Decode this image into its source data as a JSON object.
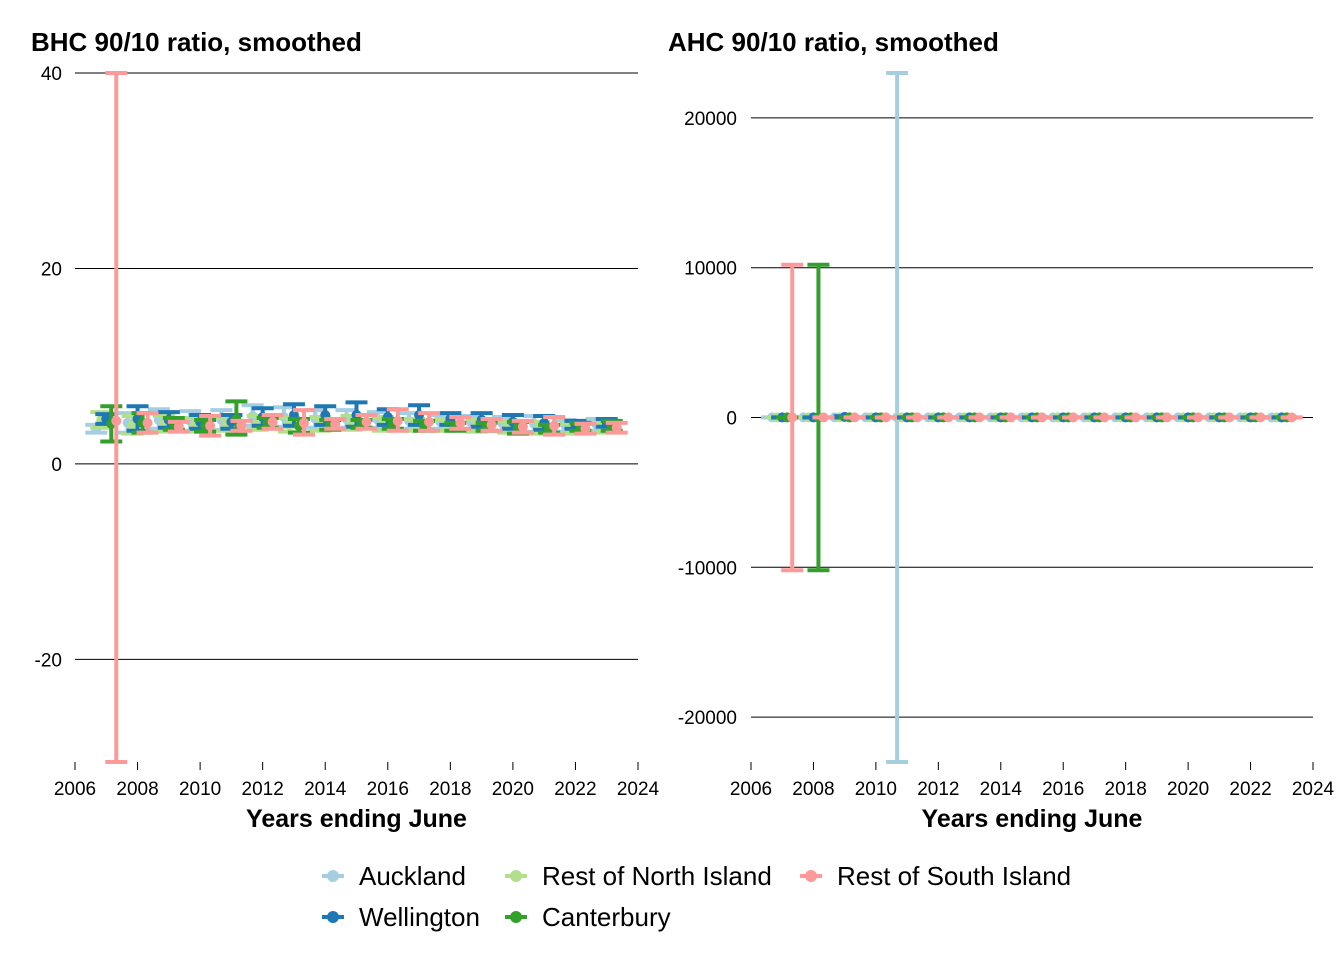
{
  "legend": [
    {
      "name": "Auckland",
      "color": "#A6CEE3"
    },
    {
      "name": "Rest of North Island",
      "color": "#B2DF8A"
    },
    {
      "name": "Rest of South Island",
      "color": "#FB9A99"
    },
    {
      "name": "Wellington",
      "color": "#1F78B4"
    },
    {
      "name": "Canterbury",
      "color": "#33A02C"
    }
  ],
  "chart_data": [
    {
      "type": "errorbar",
      "title": "BHC 90/10 ratio, smoothed",
      "xlabel": "Years ending June",
      "ylabel": "",
      "xlim": [
        2006,
        2024
      ],
      "ylim": [
        -30.5,
        40
      ],
      "xticks": [
        2006,
        2008,
        2010,
        2012,
        2014,
        2016,
        2018,
        2020,
        2022,
        2024
      ],
      "yticks": [
        -20,
        0,
        20,
        40
      ],
      "ytick_labels": [
        "-20",
        "0",
        "20",
        "40"
      ],
      "grid": "horizontal",
      "x": [
        2007,
        2008,
        2009,
        2010,
        2011,
        2012,
        2013,
        2014,
        2015,
        2016,
        2017,
        2018,
        2019,
        2020,
        2021,
        2022,
        2023
      ],
      "series": [
        {
          "name": "Auckland",
          "color": "#A6CEE3",
          "values": [
            3.6,
            4.2,
            4.5,
            4.4,
            4.5,
            4.9,
            4.8,
            4.6,
            4.6,
            4.5,
            4.4,
            4.3,
            4.2,
            4.1,
            4.1,
            3.9,
            4.0
          ],
          "lower": [
            3.2,
            3.2,
            3.6,
            3.4,
            3.5,
            3.9,
            3.8,
            3.7,
            3.7,
            3.7,
            3.6,
            3.6,
            3.5,
            3.4,
            3.3,
            3.3,
            3.4
          ],
          "upper": [
            4.0,
            5.2,
            5.6,
            5.4,
            5.5,
            6.0,
            5.8,
            5.5,
            5.5,
            5.3,
            5.2,
            5.0,
            4.9,
            4.8,
            4.9,
            4.5,
            4.6
          ]
        },
        {
          "name": "Rest of North Island",
          "color": "#B2DF8A",
          "values": [
            4.5,
            4.0,
            4.1,
            4.0,
            4.1,
            4.2,
            4.0,
            4.1,
            4.2,
            4.1,
            4.0,
            4.0,
            3.9,
            3.8,
            3.7,
            3.6,
            3.7
          ],
          "lower": [
            3.7,
            3.1,
            3.3,
            3.3,
            3.4,
            3.5,
            3.3,
            3.4,
            3.5,
            3.4,
            3.4,
            3.4,
            3.3,
            3.2,
            3.1,
            3.1,
            3.2
          ],
          "upper": [
            5.3,
            4.9,
            4.9,
            4.7,
            4.8,
            4.9,
            4.7,
            4.8,
            4.9,
            4.8,
            4.6,
            4.6,
            4.5,
            4.4,
            4.3,
            4.1,
            4.2
          ]
        },
        {
          "name": "Wellington",
          "color": "#1F78B4",
          "values": [
            4.6,
            4.6,
            4.5,
            4.3,
            4.3,
            4.8,
            5.0,
            5.0,
            5.0,
            4.8,
            5.0,
            4.6,
            4.5,
            4.3,
            4.2,
            4.0,
            4.2
          ],
          "lower": [
            4.1,
            3.4,
            3.7,
            3.6,
            3.6,
            3.9,
            3.9,
            4.0,
            3.8,
            4.0,
            4.0,
            4.0,
            3.8,
            3.6,
            3.5,
            3.6,
            3.8
          ],
          "upper": [
            5.1,
            5.9,
            5.3,
            5.0,
            5.0,
            5.7,
            6.1,
            5.9,
            6.3,
            5.6,
            6.0,
            5.2,
            5.2,
            5.0,
            4.9,
            4.4,
            4.6
          ]
        },
        {
          "name": "Canterbury",
          "color": "#33A02C",
          "values": [
            4.1,
            4.2,
            4.1,
            3.9,
            4.6,
            4.2,
            3.9,
            4.0,
            4.1,
            4.1,
            3.9,
            3.8,
            3.8,
            3.7,
            3.6,
            3.8,
            3.9
          ],
          "lower": [
            2.3,
            3.2,
            3.5,
            3.3,
            3.0,
            3.7,
            3.2,
            3.5,
            3.7,
            3.6,
            3.4,
            3.4,
            3.4,
            3.1,
            3.2,
            3.4,
            3.4
          ],
          "upper": [
            5.9,
            5.2,
            4.7,
            4.5,
            6.4,
            4.7,
            4.6,
            4.5,
            4.5,
            4.6,
            4.4,
            4.2,
            4.2,
            4.3,
            4.0,
            4.2,
            4.4
          ]
        },
        {
          "name": "Rest of South Island",
          "color": "#FB9A99",
          "values": [
            4.4,
            4.2,
            3.8,
            3.9,
            3.9,
            4.3,
            4.2,
            4.1,
            4.3,
            4.4,
            4.3,
            4.2,
            4.0,
            3.8,
            3.9,
            3.6,
            3.7
          ],
          "lower": [
            -30.5,
            3.2,
            3.3,
            2.9,
            3.4,
            3.6,
            3.0,
            3.6,
            3.6,
            3.4,
            3.4,
            3.6,
            3.4,
            3.2,
            3.0,
            3.1,
            3.2
          ],
          "upper": [
            40.0,
            5.2,
            4.3,
            4.9,
            4.4,
            5.0,
            5.5,
            4.6,
            5.0,
            5.6,
            5.2,
            4.8,
            4.6,
            4.4,
            4.8,
            4.1,
            4.2
          ]
        }
      ]
    },
    {
      "type": "errorbar",
      "title": "AHC 90/10 ratio, smoothed",
      "xlabel": "Years ending June",
      "ylabel": "",
      "xlim": [
        2006,
        2024
      ],
      "ylim": [
        -23000,
        23000
      ],
      "xticks": [
        2006,
        2008,
        2010,
        2012,
        2014,
        2016,
        2018,
        2020,
        2022,
        2024
      ],
      "yticks": [
        -20000,
        -10000,
        0,
        10000,
        20000
      ],
      "ytick_labels": [
        "-20000",
        "-10000",
        "0",
        "10000",
        "20000"
      ],
      "grid": "horizontal",
      "x": [
        2007,
        2008,
        2009,
        2010,
        2011,
        2012,
        2013,
        2014,
        2015,
        2016,
        2017,
        2018,
        2019,
        2020,
        2021,
        2022,
        2023
      ],
      "series": [
        {
          "name": "Auckland",
          "color": "#A6CEE3",
          "values": [
            6,
            6,
            6,
            6,
            6,
            6,
            6,
            6,
            6,
            6,
            6,
            6,
            6,
            6,
            6,
            6,
            6
          ],
          "lower": [
            2,
            2,
            2,
            2,
            -23000,
            2,
            2,
            2,
            2,
            2,
            2,
            2,
            2,
            2,
            2,
            2,
            2
          ],
          "upper": [
            10,
            10,
            10,
            10,
            23000,
            10,
            10,
            10,
            10,
            10,
            10,
            10,
            10,
            10,
            10,
            10,
            10
          ]
        },
        {
          "name": "Rest of North Island",
          "color": "#B2DF8A",
          "values": [
            6,
            6,
            6,
            6,
            6,
            6,
            6,
            6,
            6,
            6,
            6,
            6,
            6,
            6,
            6,
            6,
            6
          ],
          "lower": [
            2,
            2,
            2,
            2,
            2,
            2,
            2,
            2,
            2,
            2,
            2,
            2,
            2,
            2,
            2,
            2,
            2
          ],
          "upper": [
            10,
            10,
            10,
            10,
            10,
            10,
            10,
            10,
            10,
            10,
            10,
            10,
            10,
            10,
            10,
            10,
            10
          ]
        },
        {
          "name": "Wellington",
          "color": "#1F78B4",
          "values": [
            6,
            6,
            40,
            6,
            6,
            6,
            6,
            6,
            6,
            6,
            6,
            6,
            6,
            6,
            6,
            6,
            6
          ],
          "lower": [
            2,
            2,
            2,
            2,
            2,
            2,
            2,
            2,
            2,
            2,
            2,
            2,
            2,
            2,
            2,
            2,
            2
          ],
          "upper": [
            10,
            10,
            80,
            10,
            10,
            10,
            10,
            10,
            10,
            10,
            10,
            10,
            10,
            10,
            10,
            10,
            10
          ]
        },
        {
          "name": "Canterbury",
          "color": "#33A02C",
          "values": [
            6,
            6,
            6,
            6,
            6,
            6,
            6,
            6,
            6,
            6,
            6,
            6,
            6,
            6,
            6,
            6,
            6
          ],
          "lower": [
            2,
            -10200,
            2,
            2,
            2,
            2,
            2,
            2,
            2,
            2,
            2,
            2,
            2,
            2,
            2,
            2,
            2
          ],
          "upper": [
            10,
            10200,
            10,
            10,
            10,
            10,
            10,
            10,
            10,
            10,
            10,
            10,
            10,
            10,
            10,
            10,
            10
          ]
        },
        {
          "name": "Rest of South Island",
          "color": "#FB9A99",
          "values": [
            6,
            6,
            6,
            6,
            6,
            6,
            6,
            6,
            6,
            6,
            6,
            6,
            6,
            6,
            6,
            6,
            6
          ],
          "lower": [
            -10200,
            2,
            2,
            2,
            2,
            2,
            2,
            2,
            2,
            2,
            2,
            2,
            2,
            2,
            2,
            2,
            2
          ],
          "upper": [
            10200,
            10,
            10,
            10,
            10,
            10,
            10,
            10,
            10,
            10,
            10,
            10,
            10,
            10,
            10,
            10,
            10
          ]
        }
      ]
    }
  ]
}
